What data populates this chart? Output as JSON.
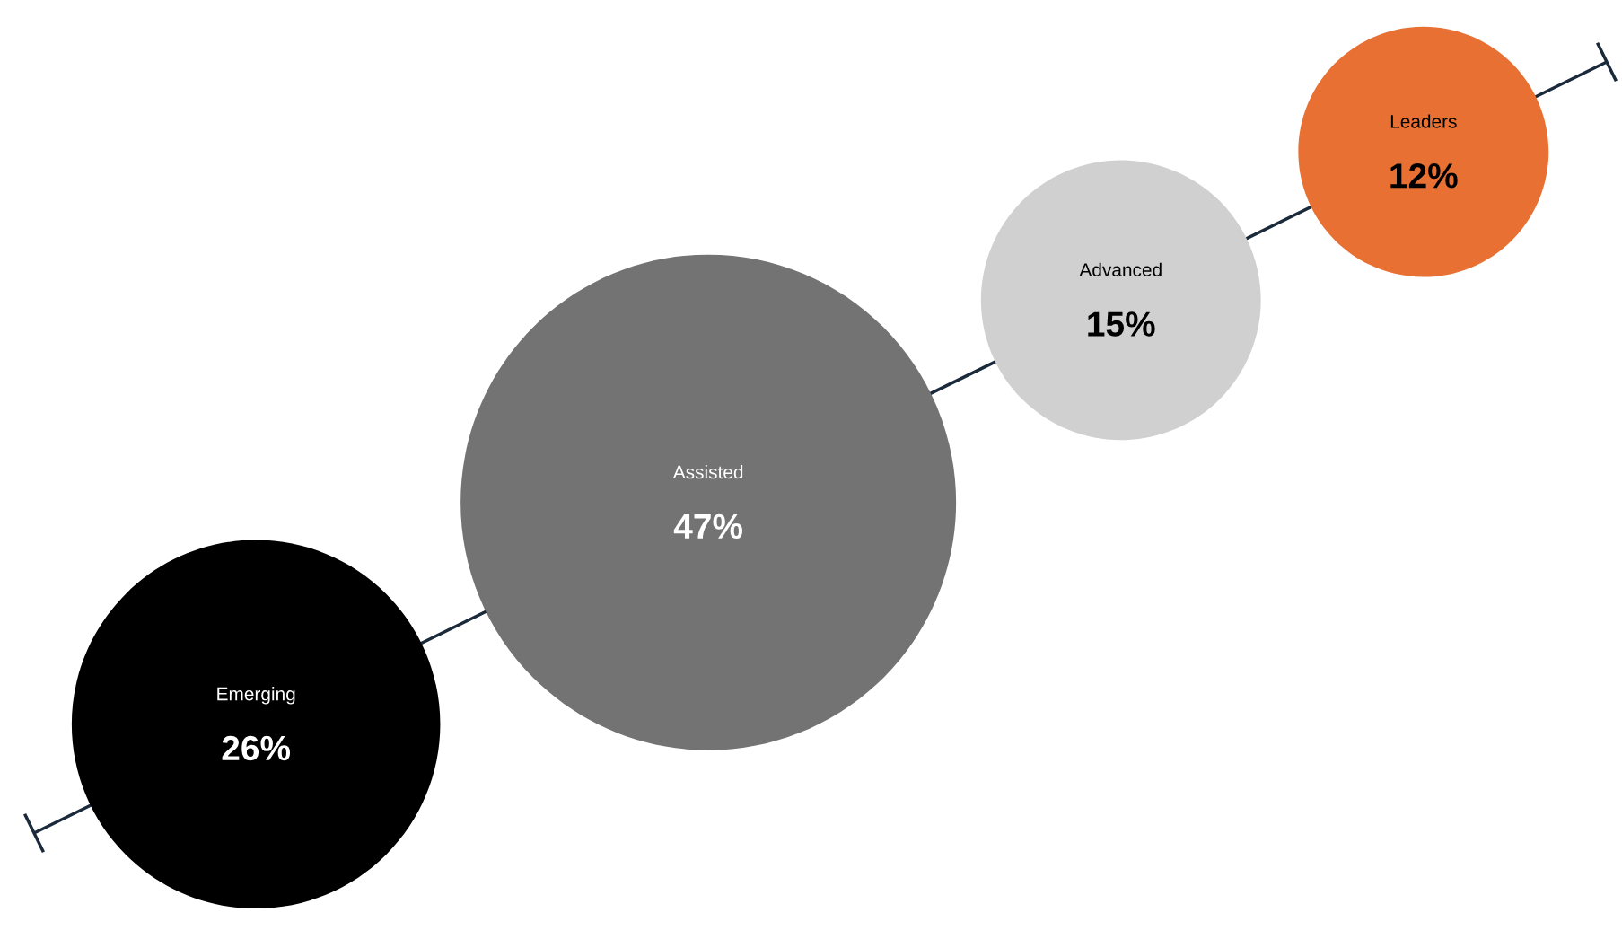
{
  "chart_data": {
    "type": "other",
    "categories": [
      "Emerging",
      "Assisted",
      "Advanced",
      "Leaders"
    ],
    "values": [
      26,
      47,
      15,
      12
    ],
    "value_labels": [
      "26%",
      "47%",
      "15%",
      "12%"
    ],
    "colors": [
      "#000000",
      "#737373",
      "#d0d0d0",
      "#e87033"
    ]
  }
}
